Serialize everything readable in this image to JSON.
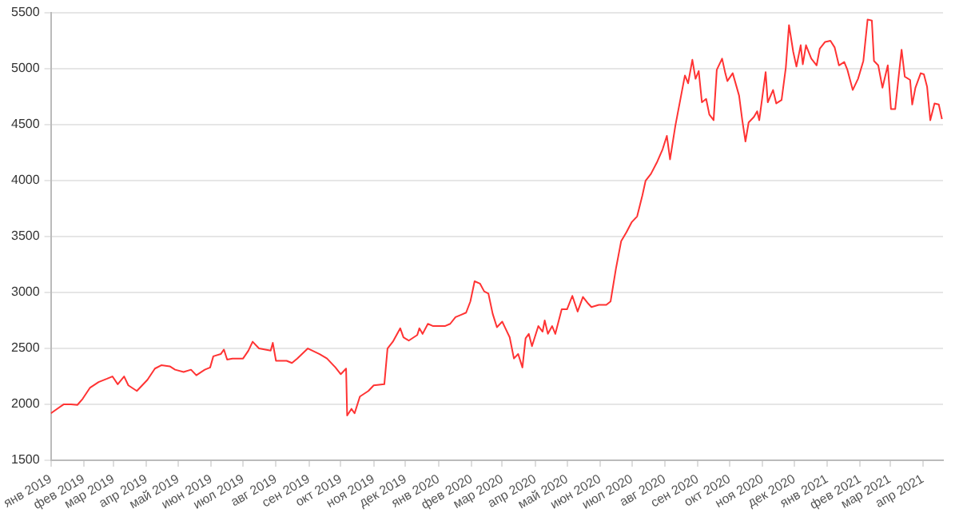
{
  "chart_data": {
    "type": "line",
    "grid": "y",
    "legend": false,
    "marker": "none",
    "line_style": "solid",
    "xlim": [
      "2019-01-01",
      "2021-04-20"
    ],
    "xticks": [
      {
        "value": "2019-01-01",
        "label": "янв 2019"
      },
      {
        "value": "2019-02-01",
        "label": "фев 2019"
      },
      {
        "value": "2019-03-01",
        "label": "мар 2019"
      },
      {
        "value": "2019-04-01",
        "label": "апр 2019"
      },
      {
        "value": "2019-05-01",
        "label": "май 2019"
      },
      {
        "value": "2019-06-01",
        "label": "июн 2019"
      },
      {
        "value": "2019-07-01",
        "label": "июл 2019"
      },
      {
        "value": "2019-08-01",
        "label": "авг 2019"
      },
      {
        "value": "2019-09-01",
        "label": "сен 2019"
      },
      {
        "value": "2019-10-01",
        "label": "окт 2019"
      },
      {
        "value": "2019-11-01",
        "label": "ноя 2019"
      },
      {
        "value": "2019-12-01",
        "label": "дек 2019"
      },
      {
        "value": "2020-01-01",
        "label": "янв 2020"
      },
      {
        "value": "2020-02-01",
        "label": "фев 2020"
      },
      {
        "value": "2020-03-01",
        "label": "мар 2020"
      },
      {
        "value": "2020-04-01",
        "label": "апр 2020"
      },
      {
        "value": "2020-05-01",
        "label": "май 2020"
      },
      {
        "value": "2020-06-01",
        "label": "июн 2020"
      },
      {
        "value": "2020-07-01",
        "label": "июл 2020"
      },
      {
        "value": "2020-08-01",
        "label": "авг 2020"
      },
      {
        "value": "2020-09-01",
        "label": "сен 2020"
      },
      {
        "value": "2020-10-01",
        "label": "окт 2020"
      },
      {
        "value": "2020-11-01",
        "label": "ноя 2020"
      },
      {
        "value": "2020-12-01",
        "label": "дек 2020"
      },
      {
        "value": "2021-01-01",
        "label": "янв 2021"
      },
      {
        "value": "2021-02-01",
        "label": "фев 2021"
      },
      {
        "value": "2021-03-01",
        "label": "мар 2021"
      },
      {
        "value": "2021-04-01",
        "label": "апр 2021"
      }
    ],
    "ylim": [
      1500,
      5500
    ],
    "yticks": [
      1500,
      2000,
      2500,
      3000,
      3500,
      4000,
      4500,
      5000,
      5500
    ],
    "series": [
      {
        "color": "#ff3333",
        "x": [
          "2019-01-01",
          "2019-01-13",
          "2019-01-20",
          "2019-01-26",
          "2019-01-31",
          "2019-02-07",
          "2019-02-15",
          "2019-02-23",
          "2019-02-28",
          "2019-03-05",
          "2019-03-11",
          "2019-03-15",
          "2019-03-23",
          "2019-03-28",
          "2019-04-02",
          "2019-04-09",
          "2019-04-15",
          "2019-04-23",
          "2019-04-28",
          "2019-05-06",
          "2019-05-13",
          "2019-05-18",
          "2019-05-26",
          "2019-05-31",
          "2019-06-03",
          "2019-06-10",
          "2019-06-13",
          "2019-06-16",
          "2019-06-21",
          "2019-07-01",
          "2019-07-06",
          "2019-07-10",
          "2019-07-16",
          "2019-07-27",
          "2019-07-29",
          "2019-08-01",
          "2019-08-11",
          "2019-08-16",
          "2019-08-21",
          "2019-08-31",
          "2019-09-11",
          "2019-09-18",
          "2019-09-26",
          "2019-10-01",
          "2019-10-06",
          "2019-10-07",
          "2019-10-11",
          "2019-10-14",
          "2019-10-19",
          "2019-10-27",
          "2019-11-01",
          "2019-11-11",
          "2019-11-14",
          "2019-11-19",
          "2019-11-26",
          "2019-11-29",
          "2019-12-04",
          "2019-12-12",
          "2019-12-14",
          "2019-12-17",
          "2019-12-22",
          "2019-12-27",
          "2020-01-07",
          "2020-01-12",
          "2020-01-17",
          "2020-01-22",
          "2020-01-27",
          "2020-01-31",
          "2020-02-04",
          "2020-02-09",
          "2020-02-13",
          "2020-02-17",
          "2020-02-21",
          "2020-02-25",
          "2020-03-01",
          "2020-03-04",
          "2020-03-08",
          "2020-03-12",
          "2020-03-16",
          "2020-03-20",
          "2020-03-23",
          "2020-03-26",
          "2020-03-29",
          "2020-04-04",
          "2020-04-08",
          "2020-04-10",
          "2020-04-13",
          "2020-04-17",
          "2020-04-20",
          "2020-04-26",
          "2020-05-01",
          "2020-05-06",
          "2020-05-11",
          "2020-05-16",
          "2020-05-21",
          "2020-05-24",
          "2020-05-31",
          "2020-06-07",
          "2020-06-11",
          "2020-06-16",
          "2020-06-21",
          "2020-06-26",
          "2020-07-01",
          "2020-07-06",
          "2020-07-11",
          "2020-07-14",
          "2020-07-19",
          "2020-07-25",
          "2020-07-30",
          "2020-08-03",
          "2020-08-06",
          "2020-08-11",
          "2020-08-16",
          "2020-08-20",
          "2020-08-23",
          "2020-08-27",
          "2020-08-30",
          "2020-09-02",
          "2020-09-05",
          "2020-09-09",
          "2020-09-12",
          "2020-09-16",
          "2020-09-19",
          "2020-09-24",
          "2020-09-27",
          "2020-09-29",
          "2020-10-04",
          "2020-10-10",
          "2020-10-13",
          "2020-10-16",
          "2020-10-19",
          "2020-10-24",
          "2020-10-27",
          "2020-10-29",
          "2020-11-04",
          "2020-11-06",
          "2020-11-11",
          "2020-11-14",
          "2020-11-19",
          "2020-11-23",
          "2020-11-26",
          "2020-11-30",
          "2020-12-03",
          "2020-12-07",
          "2020-12-09",
          "2020-12-12",
          "2020-12-17",
          "2020-12-22",
          "2020-12-25",
          "2020-12-30",
          "2021-01-04",
          "2021-01-08",
          "2021-01-12",
          "2021-01-17",
          "2021-01-20",
          "2021-01-25",
          "2021-01-30",
          "2021-02-04",
          "2021-02-08",
          "2021-02-12",
          "2021-02-14",
          "2021-02-18",
          "2021-02-22",
          "2021-02-27",
          "2021-03-02",
          "2021-03-06",
          "2021-03-09",
          "2021-03-12",
          "2021-03-15",
          "2021-03-20",
          "2021-03-22",
          "2021-03-25",
          "2021-03-30",
          "2021-04-02",
          "2021-04-05",
          "2021-04-08",
          "2021-04-12",
          "2021-04-16",
          "2021-04-19"
        ],
        "values": [
          1920,
          2000,
          2000,
          1995,
          2050,
          2150,
          2200,
          2230,
          2250,
          2180,
          2250,
          2170,
          2120,
          2170,
          2220,
          2320,
          2350,
          2340,
          2310,
          2290,
          2310,
          2260,
          2310,
          2330,
          2430,
          2450,
          2490,
          2400,
          2410,
          2410,
          2480,
          2560,
          2500,
          2480,
          2550,
          2390,
          2390,
          2370,
          2410,
          2500,
          2450,
          2410,
          2330,
          2270,
          2320,
          1900,
          1960,
          1920,
          2070,
          2120,
          2170,
          2180,
          2500,
          2560,
          2680,
          2600,
          2570,
          2620,
          2680,
          2630,
          2720,
          2700,
          2700,
          2720,
          2780,
          2800,
          2820,
          2920,
          3100,
          3080,
          3010,
          2990,
          2810,
          2690,
          2740,
          2680,
          2600,
          2410,
          2450,
          2330,
          2590,
          2630,
          2520,
          2700,
          2650,
          2750,
          2630,
          2700,
          2630,
          2850,
          2850,
          2970,
          2830,
          2960,
          2900,
          2870,
          2890,
          2890,
          2920,
          3210,
          3460,
          3540,
          3630,
          3680,
          3870,
          4000,
          4060,
          4170,
          4280,
          4400,
          4190,
          4490,
          4740,
          4940,
          4870,
          5080,
          4910,
          4980,
          4700,
          4730,
          4590,
          4540,
          4990,
          5090,
          4960,
          4890,
          4960,
          4760,
          4540,
          4350,
          4520,
          4570,
          4620,
          4540,
          4970,
          4700,
          4810,
          4690,
          4720,
          5010,
          5390,
          5150,
          5020,
          5210,
          5040,
          5210,
          5090,
          5030,
          5180,
          5240,
          5250,
          5190,
          5030,
          5060,
          4990,
          4810,
          4910,
          5070,
          5440,
          5430,
          5070,
          5030,
          4830,
          5030,
          4640,
          4640,
          4910,
          5170,
          4930,
          4900,
          4680,
          4830,
          4960,
          4950,
          4840,
          4540,
          4690,
          4680,
          4550
        ]
      }
    ]
  }
}
